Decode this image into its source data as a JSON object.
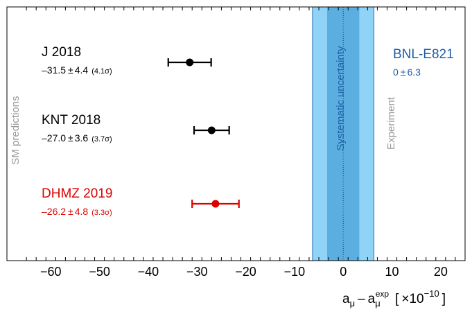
{
  "chart_data": {
    "type": "scatter",
    "xlabel": {
      "main": "a",
      "main_sub": "μ",
      "minus": "–",
      "second": "a",
      "second_sub": "μ",
      "second_sup": "exp",
      "unit_open": "[",
      "unit_times": "×",
      "unit_base": "10",
      "unit_exp": "−10",
      "unit_close": "]"
    },
    "xlim": [
      -69,
      25
    ],
    "x_ticks": [
      -60,
      -50,
      -40,
      -30,
      -20,
      -10,
      0,
      10,
      20
    ],
    "x_tick_labels": [
      "−60",
      "−50",
      "−40",
      "−30",
      "−20",
      "−10",
      "0",
      "10",
      "20"
    ],
    "y_axis_label": "SM predictions",
    "series": [
      {
        "name": "J 2018",
        "value": -31.5,
        "error": 4.4,
        "label_value": "–31.5",
        "label_pm": "±",
        "label_error": "4.4",
        "label_sigma": "(4.1σ)",
        "color": "#000000"
      },
      {
        "name": "KNT 2018",
        "value": -27.0,
        "error": 3.6,
        "label_value": "–27.0",
        "label_pm": "±",
        "label_error": "3.6",
        "label_sigma": "(3.7σ)",
        "color": "#000000"
      },
      {
        "name": "DHMZ 2019",
        "value": -26.2,
        "error": 4.8,
        "label_value": "–26.2",
        "label_pm": "±",
        "label_error": "4.8",
        "label_sigma": "(3.3σ)",
        "color": "#dd0000"
      }
    ],
    "experiment": {
      "name": "BNL-E821",
      "value": 0,
      "total_error": 6.3,
      "inner_error": 3.3,
      "value_label": "0",
      "pm": "±",
      "error_label": "6.3",
      "band_label": "Systematic uncertainty",
      "side_label": "Experiment",
      "name_color": "#1f5fa8",
      "outer_color": "#8fd3f7",
      "inner_color": "#5aaee0",
      "edge_color": "#2a6db5"
    },
    "grid": false
  }
}
